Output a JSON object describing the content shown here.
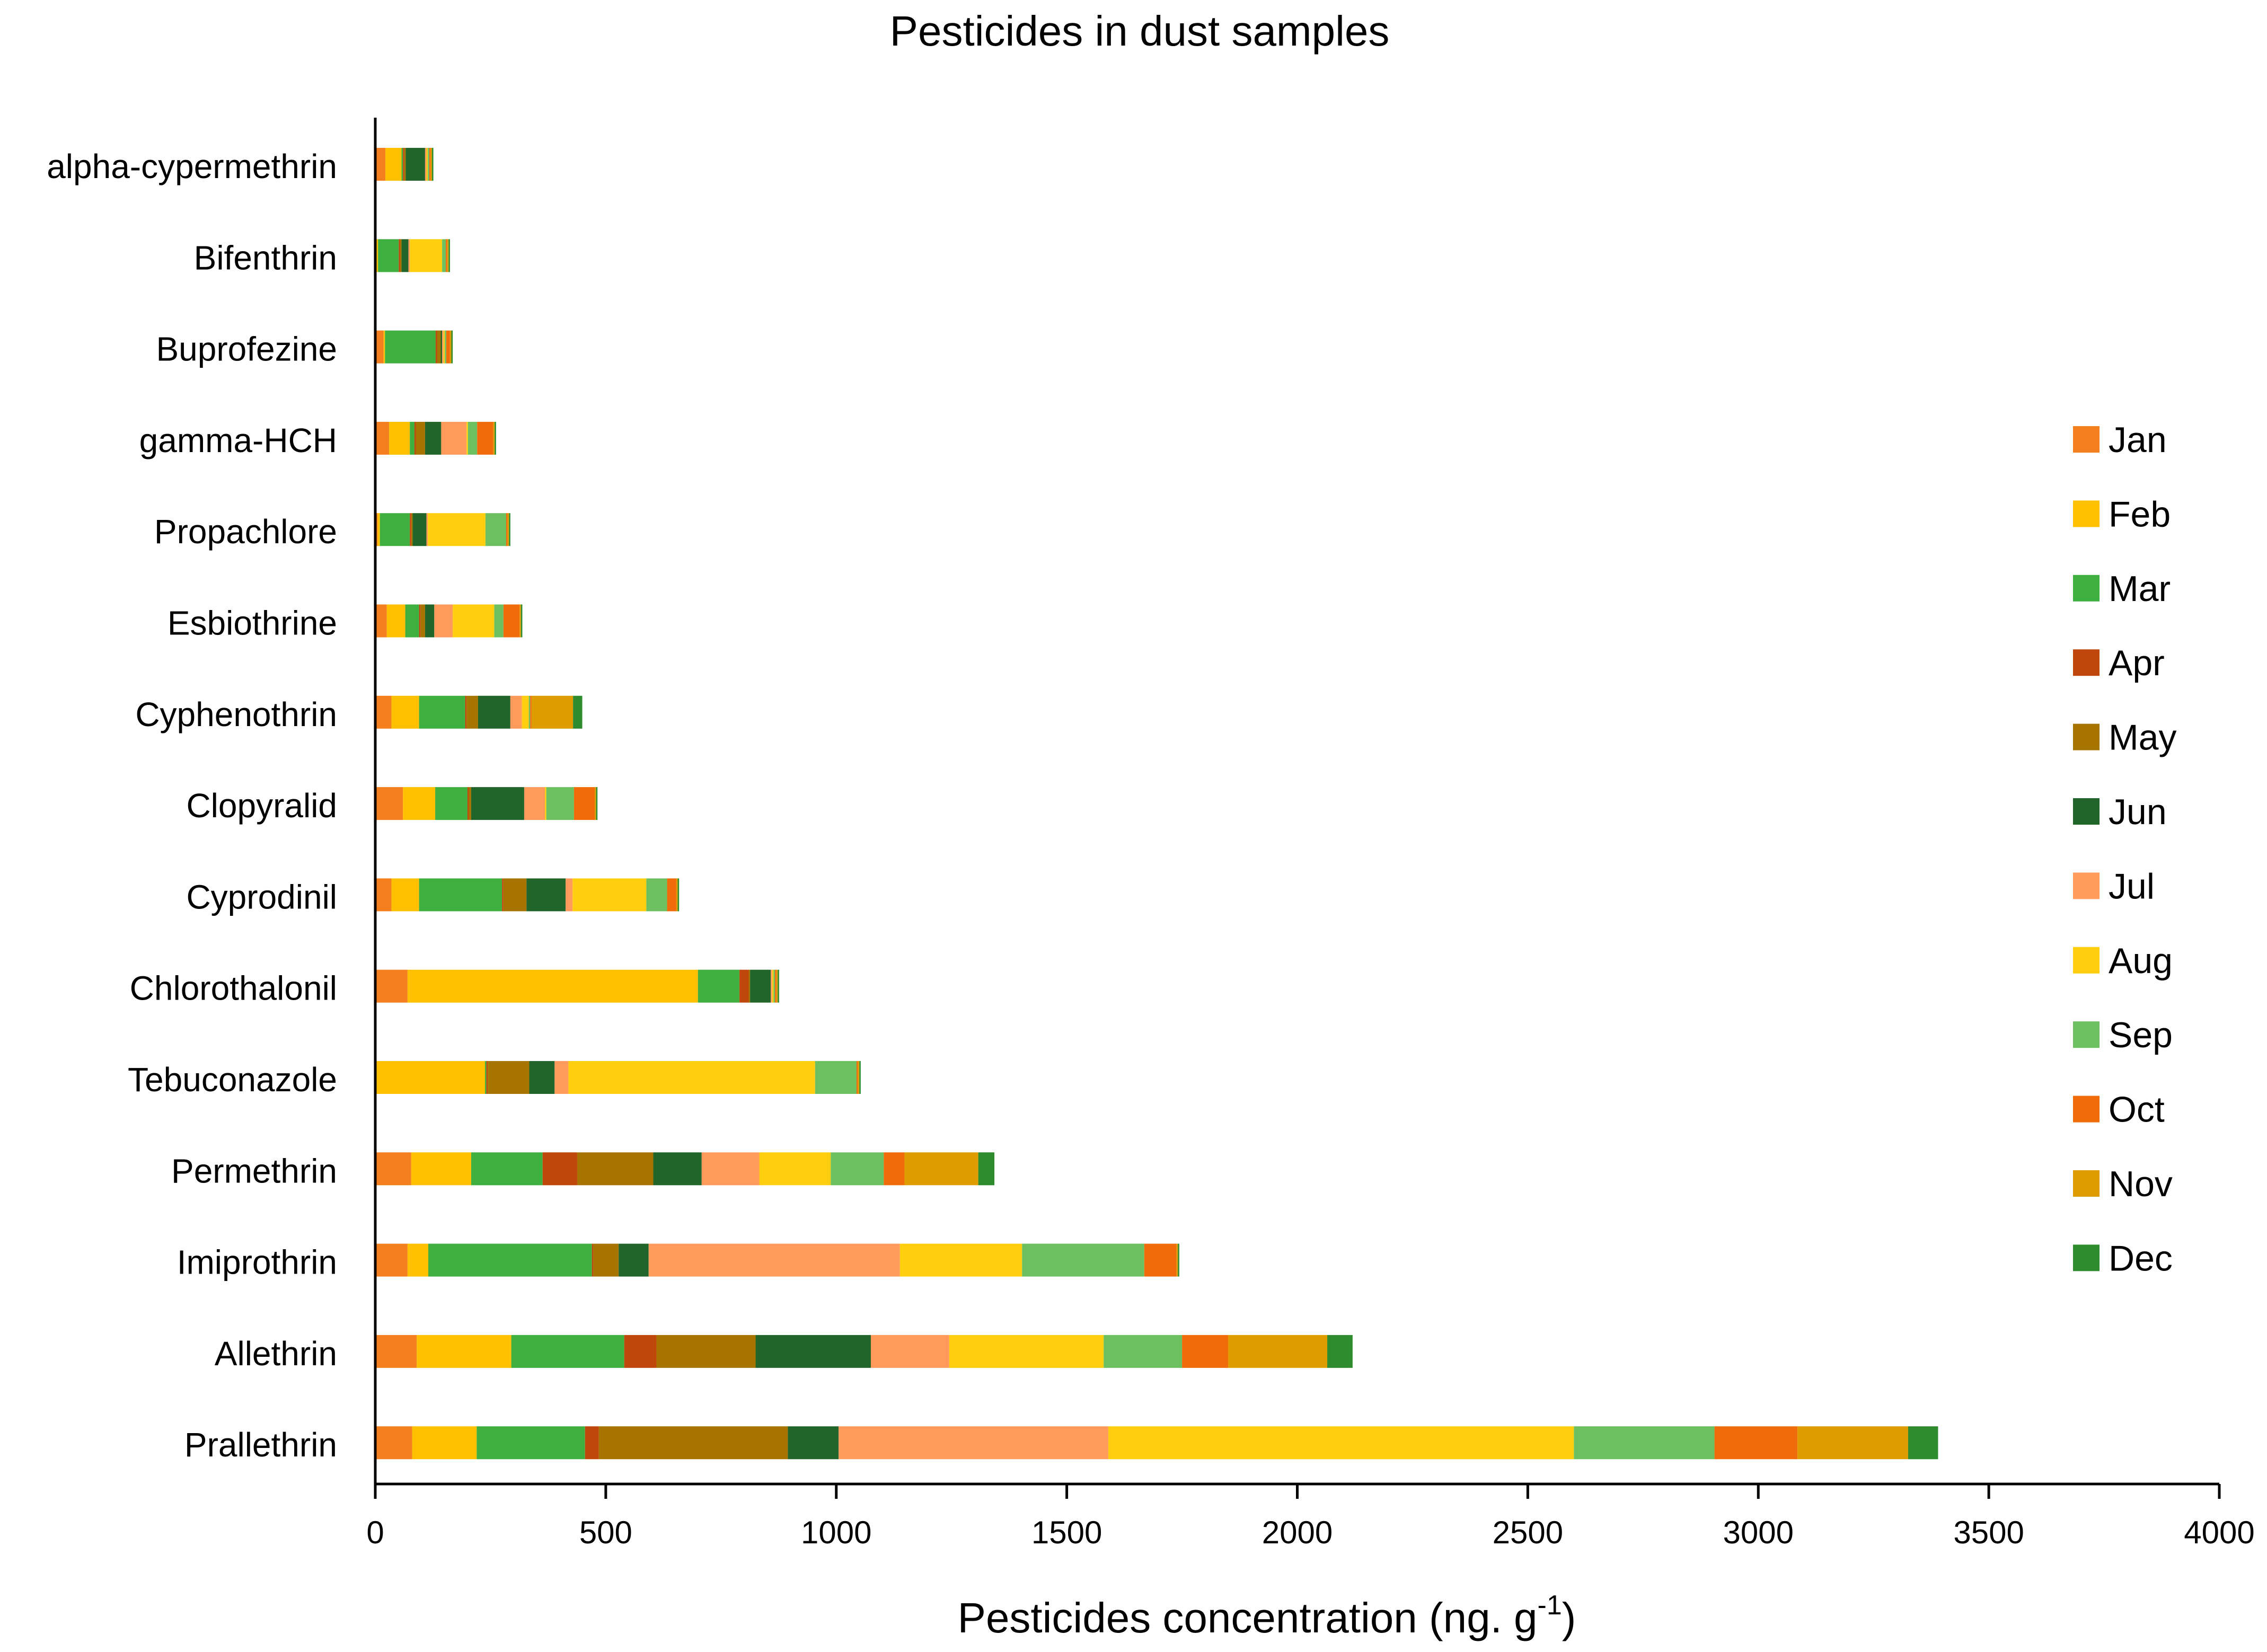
{
  "chart_data": {
    "type": "bar",
    "orientation": "horizontal",
    "stacked": true,
    "title": "Pesticides in dust samples",
    "xlabel_main": "Pesticides concentration (ng. g",
    "xlabel_sup": "-1",
    "xlabel_tail": ")",
    "ylabel": "",
    "xlim": [
      0,
      4000
    ],
    "xticks": [
      "0",
      "500",
      "1000",
      "1500",
      "2000",
      "2500",
      "3000",
      "3500",
      "4000"
    ],
    "grid": false,
    "legend_position": "right",
    "categories": [
      "alpha-cypermethrin",
      "Bifenthrin",
      "Buprofezine",
      "gamma-HCH",
      "Propachlore",
      "Esbiothrine",
      "Cyphenothrin",
      "Clopyralid",
      "Cyprodinil",
      "Chlorothalonil",
      "Tebuconazole",
      "Permethrin",
      "Imiprothrin",
      "Allethrin",
      "Prallethrin"
    ],
    "series": [
      {
        "name": "Jan",
        "color": "#F47F1F",
        "values": [
          22,
          3,
          18,
          30,
          5,
          25,
          35,
          60,
          35,
          70,
          3,
          78,
          70,
          90,
          80
        ]
      },
      {
        "name": "Feb",
        "color": "#FFC000",
        "values": [
          35,
          3,
          3,
          45,
          5,
          40,
          60,
          70,
          60,
          630,
          235,
          130,
          45,
          205,
          140
        ]
      },
      {
        "name": "Mar",
        "color": "#3FAF3F",
        "values": [
          3,
          45,
          110,
          10,
          65,
          30,
          100,
          70,
          180,
          90,
          3,
          155,
          355,
          245,
          235
        ]
      },
      {
        "name": "Apr",
        "color": "#C0470B",
        "values": [
          3,
          3,
          3,
          3,
          3,
          3,
          3,
          3,
          3,
          20,
          3,
          75,
          3,
          70,
          30
        ]
      },
      {
        "name": "May",
        "color": "#A87400",
        "values": [
          3,
          3,
          8,
          20,
          3,
          10,
          25,
          5,
          50,
          3,
          90,
          165,
          55,
          215,
          410
        ]
      },
      {
        "name": "Jun",
        "color": "#22652A",
        "values": [
          42,
          15,
          3,
          35,
          30,
          20,
          70,
          115,
          85,
          45,
          55,
          105,
          65,
          250,
          110
        ]
      },
      {
        "name": "Jul",
        "color": "#FF9A5C",
        "values": [
          3,
          3,
          3,
          55,
          3,
          40,
          25,
          45,
          15,
          3,
          30,
          125,
          545,
          170,
          585
        ]
      },
      {
        "name": "Aug",
        "color": "#FFCE0F",
        "values": [
          3,
          70,
          3,
          3,
          125,
          90,
          15,
          3,
          160,
          3,
          535,
          155,
          265,
          335,
          1010
        ]
      },
      {
        "name": "Sep",
        "color": "#6CC060",
        "values": [
          3,
          8,
          3,
          20,
          45,
          20,
          3,
          60,
          45,
          3,
          90,
          115,
          265,
          170,
          305
        ]
      },
      {
        "name": "Oct",
        "color": "#F06B0A",
        "values": [
          3,
          3,
          8,
          35,
          3,
          35,
          3,
          45,
          20,
          3,
          3,
          45,
          70,
          100,
          180
        ]
      },
      {
        "name": "Nov",
        "color": "#DE9C00",
        "values": [
          3,
          3,
          3,
          3,
          3,
          3,
          90,
          3,
          3,
          3,
          3,
          160,
          3,
          215,
          240
        ]
      },
      {
        "name": "Dec",
        "color": "#2E8B2E",
        "values": [
          3,
          3,
          3,
          3,
          3,
          3,
          20,
          3,
          3,
          3,
          3,
          35,
          3,
          55,
          65
        ]
      }
    ]
  }
}
